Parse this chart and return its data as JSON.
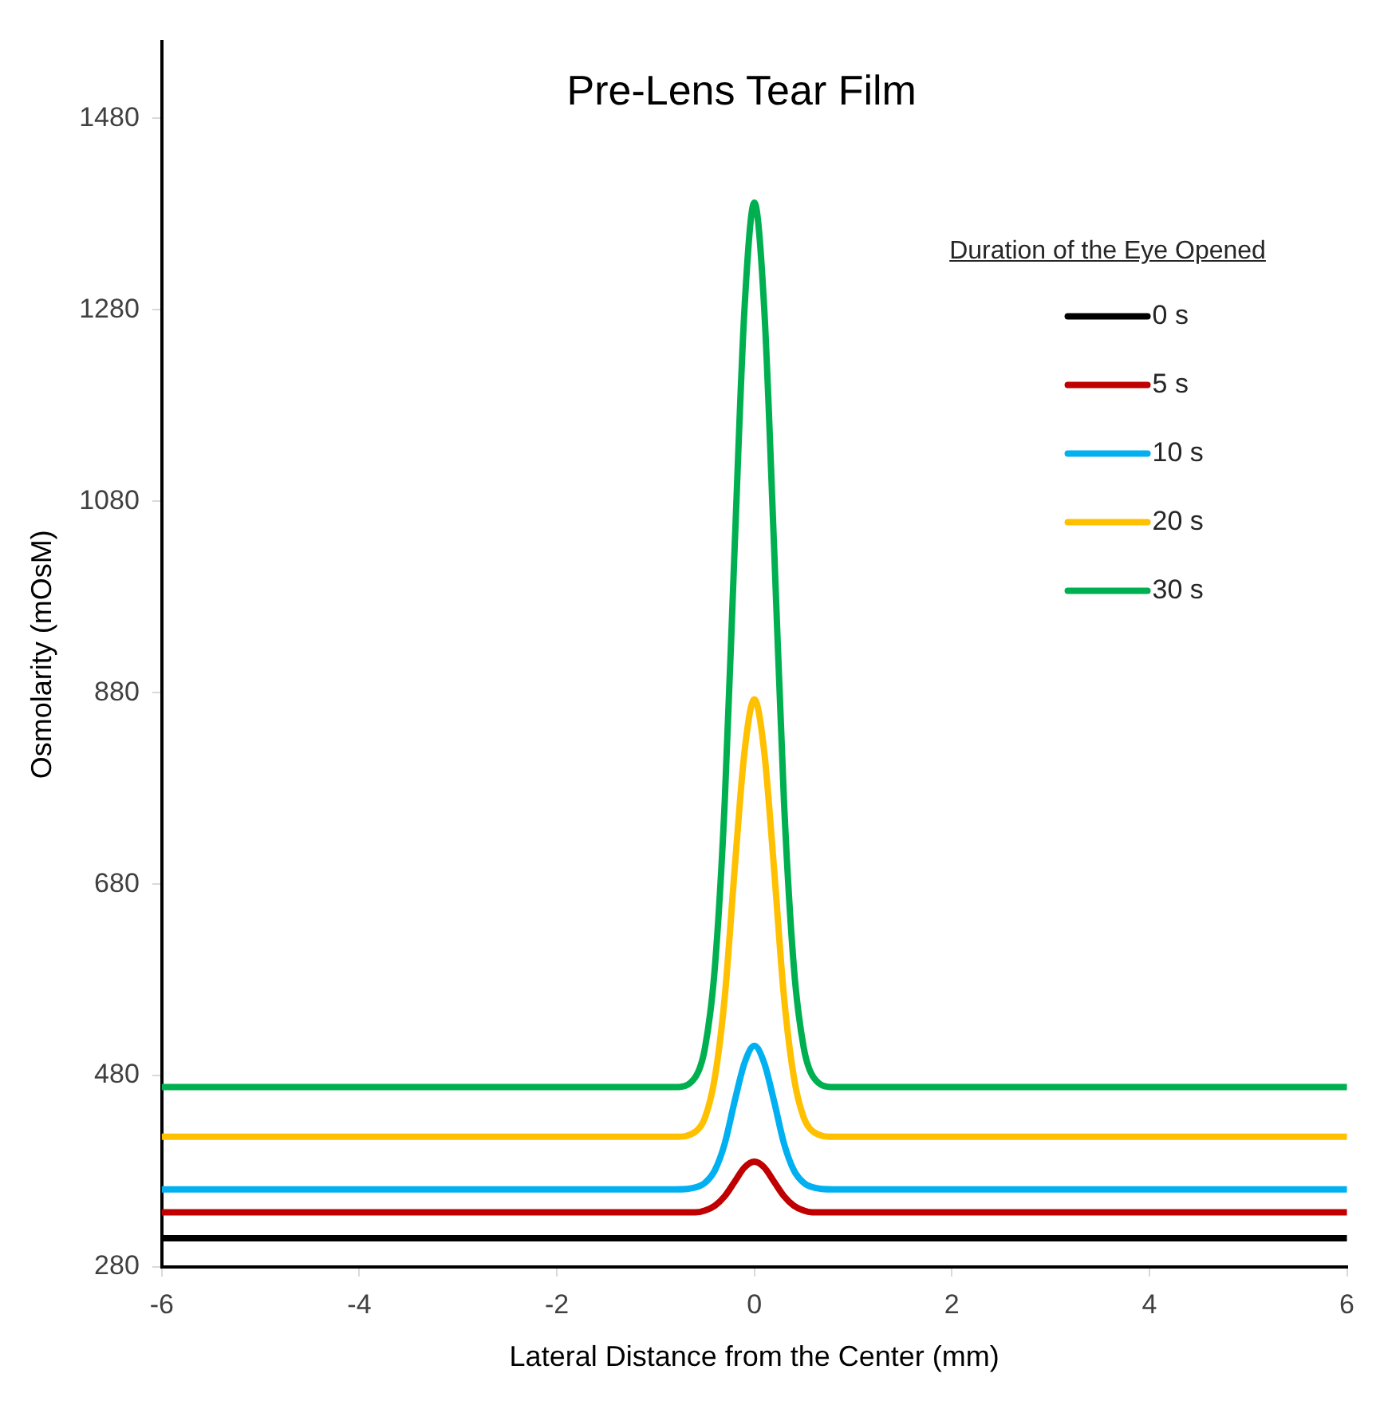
{
  "chart_data": {
    "type": "line",
    "title": "Pre-Lens Tear Film",
    "xlabel": "Lateral Distance from the Center (mm)",
    "ylabel": "Osmolarity (mOsM)",
    "legend_title": "Duration of the Eye Opened",
    "legend": "top right",
    "marker": "none",
    "line_style": "solid",
    "xlim": [
      -6,
      6
    ],
    "xticks": [
      -6,
      -4,
      -2,
      0,
      2,
      4,
      6
    ],
    "ylim": [
      280,
      1560
    ],
    "yticks": [
      280,
      480,
      680,
      880,
      1080,
      1280,
      1480
    ],
    "x": [
      -6,
      -0.8,
      -0.6,
      -0.5,
      -0.4,
      -0.3,
      -0.2,
      -0.1,
      0,
      0.1,
      0.2,
      0.3,
      0.4,
      0.5,
      0.6,
      0.8,
      6
    ],
    "series": [
      {
        "name": "0 s",
        "color": "#000000",
        "values": [
          310,
          310,
          310,
          310,
          310,
          310,
          310,
          310,
          310,
          310,
          310,
          310,
          310,
          310,
          310,
          310,
          310
        ]
      },
      {
        "name": "5 s",
        "color": "#c00000",
        "values": [
          337,
          337,
          337,
          339,
          344,
          354,
          369,
          384,
          390,
          384,
          369,
          354,
          344,
          339,
          337,
          337,
          337
        ]
      },
      {
        "name": "10 s",
        "color": "#00b0f0",
        "values": [
          361,
          361,
          363,
          368,
          381,
          409,
          453,
          493,
          511,
          493,
          453,
          409,
          381,
          368,
          363,
          361,
          361
        ]
      },
      {
        "name": "20 s",
        "color": "#ffc000",
        "values": [
          416,
          416,
          421,
          436,
          478,
          562,
          695,
          818,
          873,
          818,
          695,
          562,
          478,
          436,
          421,
          416,
          416
        ]
      },
      {
        "name": "30 s",
        "color": "#00b050",
        "values": [
          468,
          468,
          478,
          509,
          593,
          766,
          1031,
          1281,
          1392,
          1281,
          1031,
          766,
          593,
          509,
          478,
          468,
          468
        ]
      }
    ]
  }
}
